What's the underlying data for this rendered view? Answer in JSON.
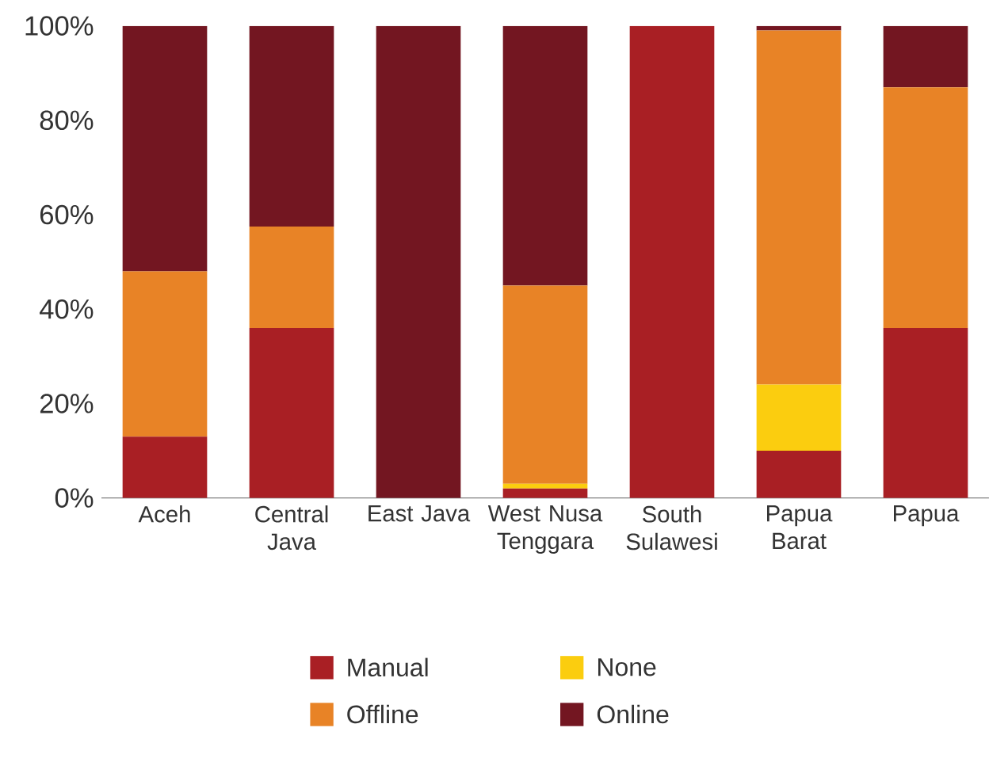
{
  "chart_data": {
    "type": "bar",
    "stacked": true,
    "categories": [
      "Aceh",
      "Central Java",
      "East Java",
      "West Nusa Tenggara",
      "South Sulawesi",
      "Papua Barat",
      "Papua"
    ],
    "series": [
      {
        "name": "Manual",
        "color": "#a91f24",
        "values": [
          13,
          36,
          0,
          2,
          100,
          10,
          36
        ]
      },
      {
        "name": "None",
        "color": "#fbcd0f",
        "values": [
          0,
          0,
          0,
          1,
          0,
          14,
          0
        ]
      },
      {
        "name": "Offline",
        "color": "#e88326",
        "values": [
          35,
          21.5,
          0,
          42,
          0,
          75,
          51
        ]
      },
      {
        "name": "Online",
        "color": "#731621",
        "values": [
          52,
          42.5,
          100,
          55,
          0,
          1,
          13
        ]
      }
    ],
    "ylim": [
      0,
      100
    ],
    "yticks": [
      {
        "value": 0,
        "label": "0%"
      },
      {
        "value": 20,
        "label": "20%"
      },
      {
        "value": 40,
        "label": "40%"
      },
      {
        "value": 60,
        "label": "60%"
      },
      {
        "value": 80,
        "label": "80%"
      },
      {
        "value": 100,
        "label": "100%"
      }
    ],
    "legend": "bottom"
  }
}
